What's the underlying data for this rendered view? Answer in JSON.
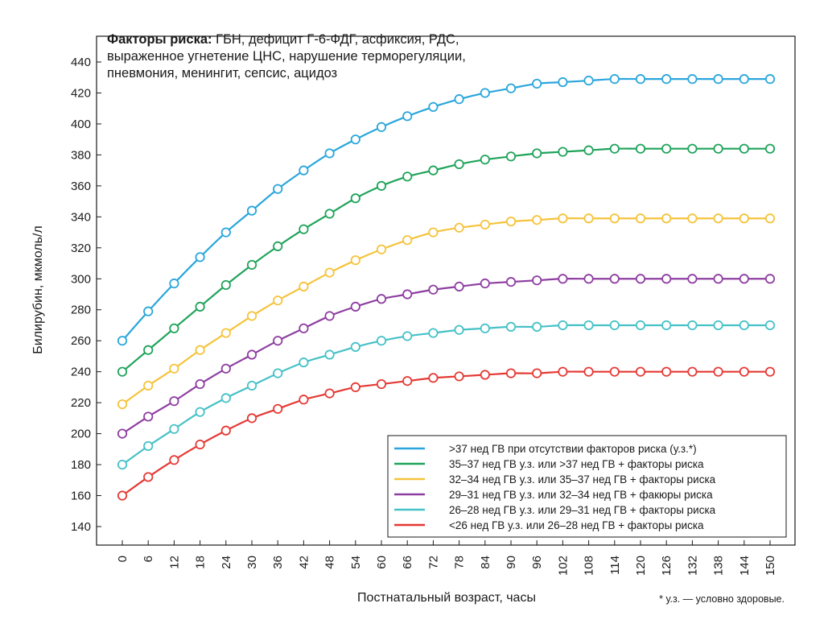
{
  "chart_data": {
    "type": "line",
    "annotation": {
      "bold": "Факторы риска:",
      "lines": [
        " ГБН, дефицит Г-6-ФДГ, асфиксия, РДС,",
        "выраженное угнетение ЦНС, нарушение терморегуляции,",
        "пневмония, менингит, сепсис, ацидоз"
      ]
    },
    "xlabel": "Постнатальный возраст, часы",
    "ylabel": "Билирубин, мкмоль/л",
    "footnote": "* у.з. — условно здоровые.",
    "xlim": [
      0,
      150
    ],
    "ylim": [
      130,
      450
    ],
    "yticks": [
      140,
      160,
      180,
      200,
      220,
      240,
      260,
      280,
      300,
      320,
      340,
      360,
      380,
      400,
      420,
      440
    ],
    "x": [
      0,
      6,
      12,
      18,
      24,
      30,
      36,
      42,
      48,
      54,
      60,
      66,
      72,
      78,
      84,
      90,
      96,
      102,
      108,
      114,
      120,
      126,
      132,
      138,
      144,
      150
    ],
    "legend_position": "bottom-right",
    "series": [
      {
        "name": ">37 нед ГВ при отсутствии факторов риска (у.з.*)",
        "color": "#2aa6dc",
        "values": [
          260,
          279,
          297,
          314,
          330,
          344,
          358,
          370,
          381,
          390,
          398,
          405,
          411,
          416,
          420,
          423,
          426,
          427,
          428,
          429,
          429,
          429,
          429,
          429,
          429,
          429
        ]
      },
      {
        "name": "35–37 нед ГВ у.з. или >37 нед ГВ + факторы риска",
        "color": "#1fa35a",
        "values": [
          240,
          254,
          268,
          282,
          296,
          309,
          321,
          332,
          342,
          352,
          360,
          366,
          370,
          374,
          377,
          379,
          381,
          382,
          383,
          384,
          384,
          384,
          384,
          384,
          384,
          384
        ]
      },
      {
        "name": "32–34 нед ГВ у.з. или 35–37 нед ГВ + факторы риска",
        "color": "#f5c33b",
        "values": [
          219,
          231,
          242,
          254,
          265,
          276,
          286,
          295,
          304,
          312,
          319,
          325,
          330,
          333,
          335,
          337,
          338,
          339,
          339,
          339,
          339,
          339,
          339,
          339,
          339,
          339
        ]
      },
      {
        "name": "29–31 нед ГВ у.з. или 32–34 нед ГВ + факюры риска",
        "color": "#8e3ea1",
        "values": [
          200,
          211,
          221,
          232,
          242,
          251,
          260,
          268,
          276,
          282,
          287,
          290,
          293,
          295,
          297,
          298,
          299,
          300,
          300,
          300,
          300,
          300,
          300,
          300,
          300,
          300
        ]
      },
      {
        "name": "26–28 нед ГВ у.з. или 29–31 нед ГВ + факторы риска",
        "color": "#45c1c7",
        "values": [
          180,
          192,
          203,
          214,
          223,
          231,
          239,
          246,
          251,
          256,
          260,
          263,
          265,
          267,
          268,
          269,
          269,
          270,
          270,
          270,
          270,
          270,
          270,
          270,
          270,
          270
        ]
      },
      {
        "name": "<26 нед ГВ у.з. или 26–28 нед ГВ + факторы риска",
        "color": "#e53935",
        "values": [
          160,
          172,
          183,
          193,
          202,
          210,
          216,
          222,
          226,
          230,
          232,
          234,
          236,
          237,
          238,
          239,
          239,
          240,
          240,
          240,
          240,
          240,
          240,
          240,
          240,
          240
        ]
      }
    ]
  }
}
